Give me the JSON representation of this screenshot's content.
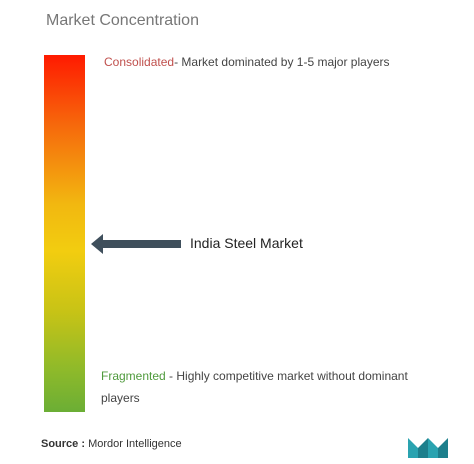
{
  "title": "Market Concentration",
  "consolidated": {
    "word": "Consolidated",
    "description": "- Market dominated by 1-5 major players"
  },
  "fragmented": {
    "word": "Fragmented",
    "description_line1": " - Highly competitive market without dominant",
    "description_line2": "players"
  },
  "marker": {
    "label": "India Steel Market",
    "position_fraction": 0.54
  },
  "source": {
    "label": "Source :",
    "text": " Mordor Intelligence"
  },
  "colors": {
    "top": "#ff1a00",
    "middle": "#f2cd10",
    "bottom": "#6bae35",
    "arrow": "#3f4f5c",
    "logo": "#2aa3b0"
  },
  "icons": {
    "logo": "mordor-intelligence-logo-icon",
    "arrow": "left-arrow-icon"
  }
}
